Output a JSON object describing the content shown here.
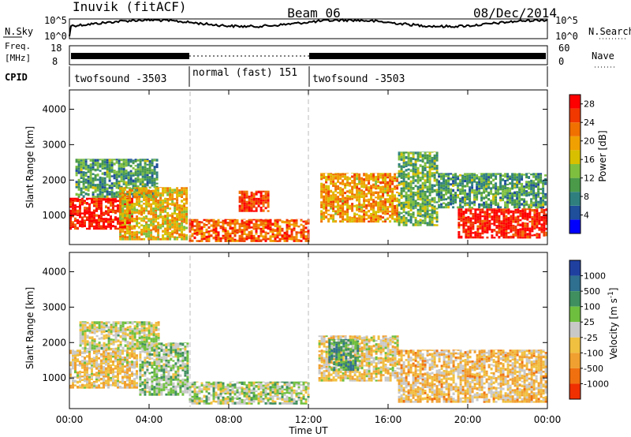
{
  "header": {
    "station": "Inuvik (fitACF)",
    "beam": "Beam 06",
    "date": "08/Dec/2014"
  },
  "status_panel": {
    "nsky_label": "N.Sky",
    "nsky_ticks": [
      "10^5",
      "10^0"
    ],
    "nsearch_label": "N.Search",
    "nsearch_ticks": [
      "10^5",
      "10^0"
    ],
    "freq_label_1": "Freq.",
    "freq_label_2": "[MHz]",
    "freq_ticks": [
      "18",
      "8"
    ],
    "nave_label": "Nave",
    "nave_ticks": [
      "60",
      "0"
    ],
    "cpid_label": "CPID",
    "cpid_segments": [
      {
        "name": "twofsound -3503",
        "start_hour": 0,
        "end_hour": 6
      },
      {
        "name": "normal (fast) 151",
        "start_hour": 6,
        "end_hour": 12
      },
      {
        "name": "twofsound -3503",
        "start_hour": 12,
        "end_hour": 24
      }
    ]
  },
  "power_panel": {
    "ylabel": "Slant Range [km]",
    "yticks": [
      "1000",
      "2000",
      "3000",
      "4000"
    ],
    "colorbar_label": "Power [dB]",
    "colorbar_ticks": [
      "4",
      "8",
      "12",
      "16",
      "20",
      "24",
      "28"
    ],
    "colors": [
      "#0000ff",
      "#1f4e9b",
      "#2f7f7f",
      "#4a9a4a",
      "#7fbf3f",
      "#d8c000",
      "#f0a000",
      "#f07000",
      "#f03800",
      "#ff0000"
    ]
  },
  "velocity_panel": {
    "ylabel": "Slant Range [km]",
    "yticks": [
      "1000",
      "2000",
      "3000",
      "4000"
    ],
    "colorbar_label": "Velocity [m s",
    "colorbar_label_sup": "-1",
    "colorbar_label_end": "]",
    "colorbar_ticks": [
      "1000",
      "500",
      "100",
      "25",
      "-25",
      "-100",
      "-500",
      "-1000"
    ],
    "colors": [
      "#2040a0",
      "#2f6f8f",
      "#3f8f5f",
      "#6fbf3f",
      "#c8c8c8",
      "#f0c040",
      "#f0a030",
      "#f07010",
      "#f03000"
    ]
  },
  "xaxis": {
    "label": "Time UT",
    "ticks": [
      "00:00",
      "04:00",
      "08:00",
      "12:00",
      "16:00",
      "20:00",
      "00:00"
    ]
  },
  "chart_data": {
    "type": "heatmap",
    "title": "Inuvik (fitACF)  Beam 06  08/Dec/2014",
    "xlabel": "Time UT",
    "ylabel": "Slant Range [km]",
    "x_range_hours": [
      0,
      24
    ],
    "y_range_km": [
      180,
      4500
    ],
    "panels": [
      {
        "name": "Power [dB]",
        "color_range": [
          0,
          30
        ],
        "regions": [
          {
            "t0": 0.0,
            "t1": 3.2,
            "r0": 600,
            "r1": 1500,
            "value": 28
          },
          {
            "t0": 0.3,
            "t1": 4.5,
            "r0": 1500,
            "r1": 2600,
            "value": 10
          },
          {
            "t0": 2.5,
            "t1": 6.0,
            "r0": 300,
            "r1": 1800,
            "value": 18
          },
          {
            "t0": 6.0,
            "t1": 12.0,
            "r0": 250,
            "r1": 900,
            "value": 24
          },
          {
            "t0": 8.5,
            "t1": 10.0,
            "r0": 1100,
            "r1": 1700,
            "value": 26
          },
          {
            "t0": 12.6,
            "t1": 16.5,
            "r0": 800,
            "r1": 2200,
            "value": 20
          },
          {
            "t0": 16.5,
            "t1": 18.5,
            "r0": 700,
            "r1": 2800,
            "value": 12
          },
          {
            "t0": 19.5,
            "t1": 24.0,
            "r0": 350,
            "r1": 1200,
            "value": 28
          },
          {
            "t0": 18.5,
            "t1": 24.0,
            "r0": 1200,
            "r1": 2200,
            "value": 10
          }
        ]
      },
      {
        "name": "Velocity [m s-1]",
        "color_range": [
          -1000,
          1000
        ],
        "regions": [
          {
            "t0": 0.0,
            "t1": 3.5,
            "r0": 700,
            "r1": 1800,
            "value": -200
          },
          {
            "t0": 0.5,
            "t1": 4.5,
            "r0": 1800,
            "r1": 2600,
            "value": 0
          },
          {
            "t0": 3.5,
            "t1": 6.0,
            "r0": 500,
            "r1": 2000,
            "value": 150
          },
          {
            "t0": 6.0,
            "t1": 12.0,
            "r0": 250,
            "r1": 900,
            "value": 80
          },
          {
            "t0": 12.5,
            "t1": 16.5,
            "r0": 900,
            "r1": 2200,
            "value": -150
          },
          {
            "t0": 13.0,
            "t1": 14.5,
            "r0": 1200,
            "r1": 2100,
            "value": 400
          },
          {
            "t0": 16.5,
            "t1": 24.0,
            "r0": 300,
            "r1": 1800,
            "value": -250
          }
        ]
      }
    ]
  }
}
